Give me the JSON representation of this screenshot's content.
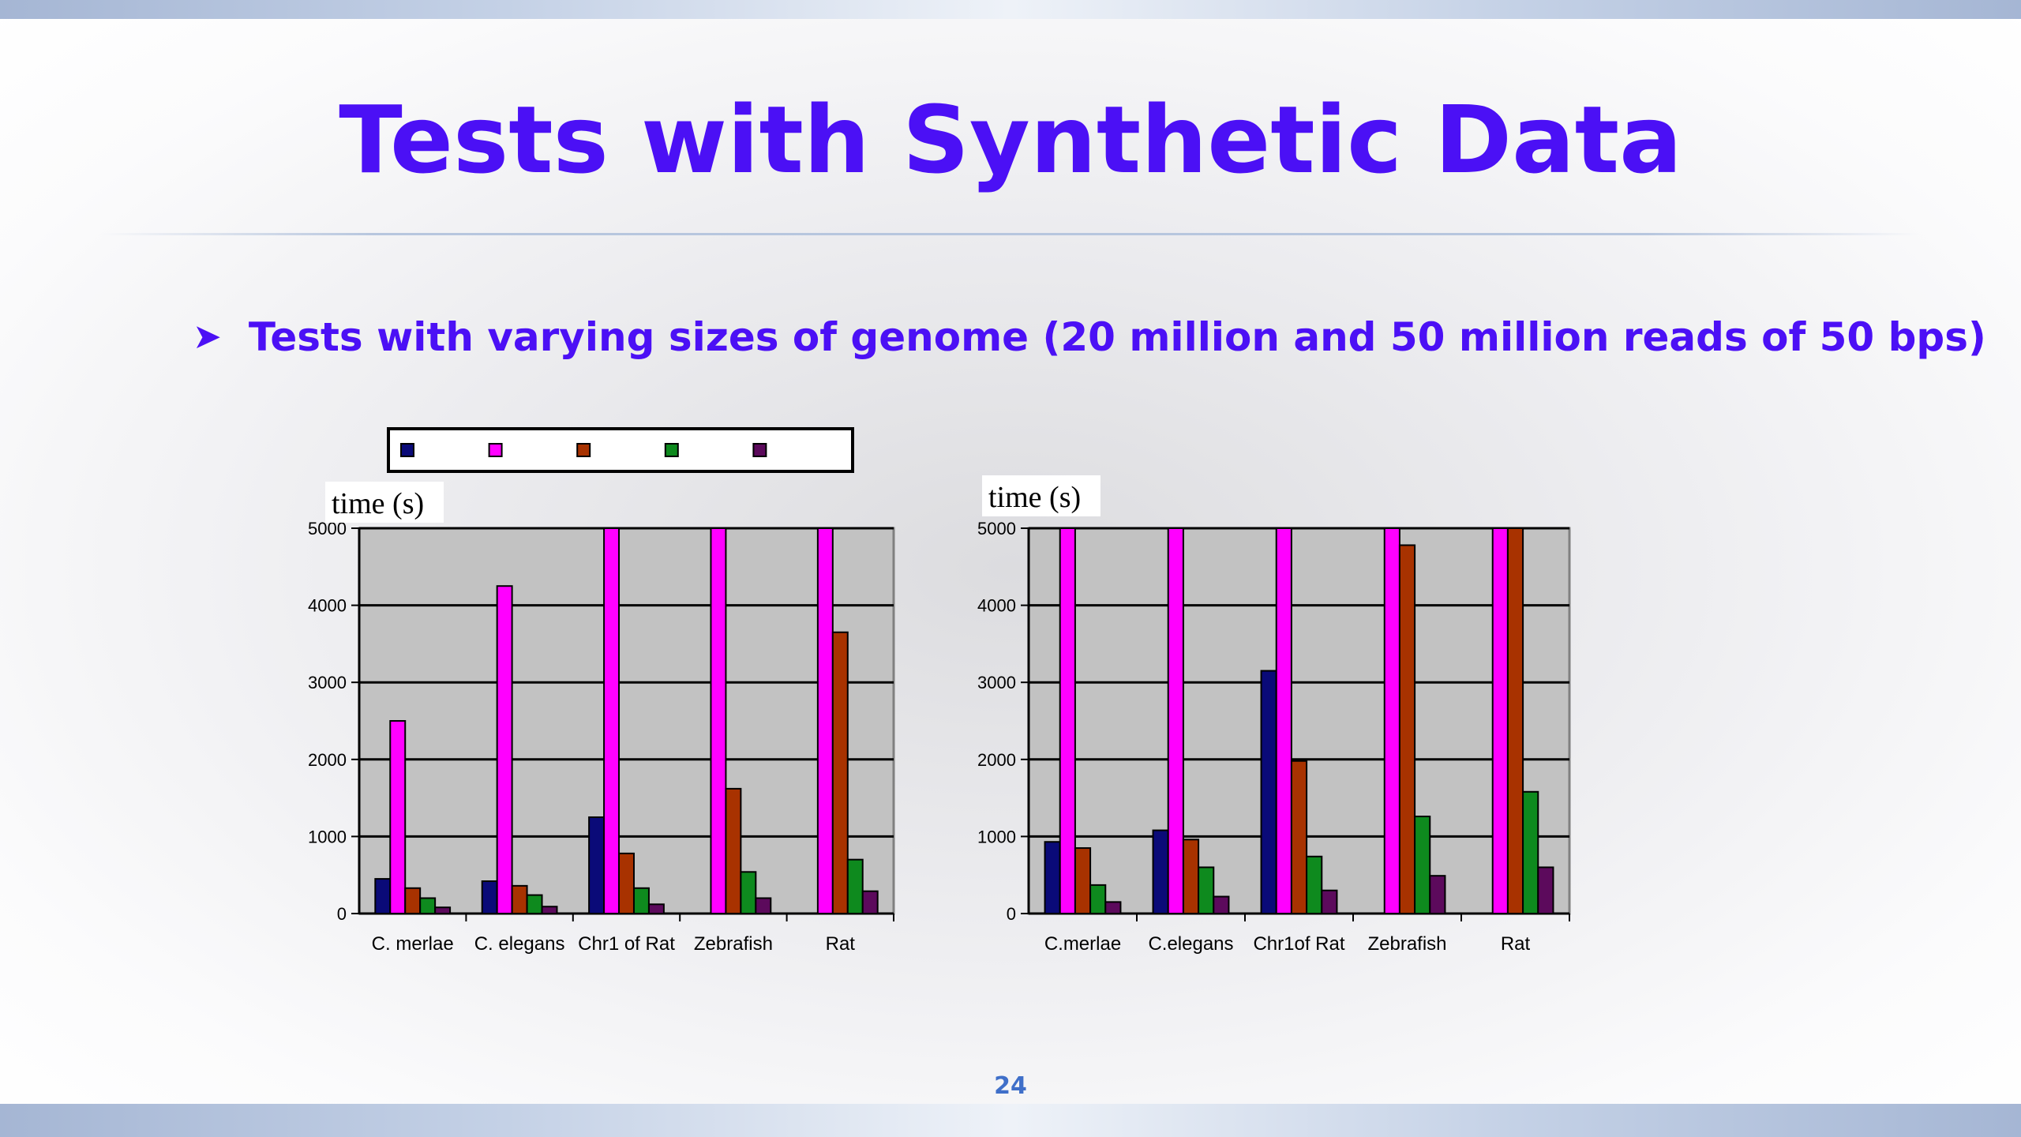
{
  "slide": {
    "title": "Tests with Synthetic Data",
    "bullet": "Tests with varying sizes of genome (20 million and 50 million reads of 50 bps)",
    "page_number": "24"
  },
  "chart_data": [
    {
      "type": "bar",
      "ylabel": "time (s)",
      "ylim": [
        0,
        5000
      ],
      "yticks": [
        "0",
        "1000",
        "2000",
        "3000",
        "4000",
        "5000"
      ],
      "categories": [
        "C. merlae",
        "C. elegans",
        "Chr1 of Rat",
        "Zebrafish",
        "Rat"
      ],
      "legend": {
        "placement": "top"
      },
      "series": [
        {
          "color": "#0a0a78",
          "values": [
            450,
            420,
            1250,
            0,
            0
          ]
        },
        {
          "color": "#ff00ff",
          "values": [
            2500,
            4250,
            5000,
            5000,
            5000
          ]
        },
        {
          "color": "#a83200",
          "values": [
            330,
            360,
            780,
            1620,
            3650
          ]
        },
        {
          "color": "#0e8a1e",
          "values": [
            200,
            240,
            330,
            540,
            700
          ]
        },
        {
          "color": "#5c0a5c",
          "values": [
            80,
            90,
            120,
            200,
            290
          ]
        }
      ]
    },
    {
      "type": "bar",
      "ylabel": "time (s)",
      "ylim": [
        0,
        5000
      ],
      "yticks": [
        "0",
        "1000",
        "2000",
        "3000",
        "4000",
        "5000"
      ],
      "categories": [
        "C.merlae",
        "C.elegans",
        "Chr1of Rat",
        "Zebrafish",
        "Rat"
      ],
      "series": [
        {
          "color": "#0a0a78",
          "values": [
            930,
            1080,
            3150,
            0,
            0
          ]
        },
        {
          "color": "#ff00ff",
          "values": [
            5000,
            5000,
            5000,
            5000,
            5000
          ]
        },
        {
          "color": "#a83200",
          "values": [
            850,
            960,
            1980,
            4780,
            5000
          ]
        },
        {
          "color": "#0e8a1e",
          "values": [
            370,
            600,
            740,
            1260,
            1580
          ]
        },
        {
          "color": "#5c0a5c",
          "values": [
            150,
            220,
            300,
            490,
            600
          ]
        }
      ]
    }
  ]
}
